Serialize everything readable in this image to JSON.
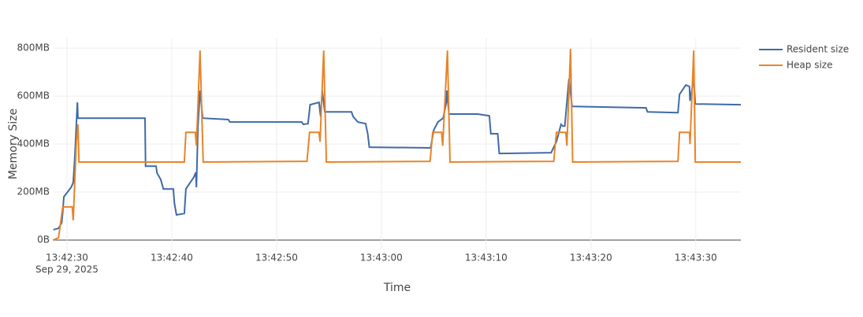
{
  "chart_data": {
    "type": "line",
    "x_title": "Time",
    "y_title": "Memory Size",
    "x_date_label": "Sep 29, 2025",
    "xlim": [
      "13:42:28.65",
      "13:43:34.3"
    ],
    "xticks": [
      "13:42:30",
      "13:42:40",
      "13:42:50",
      "13:43:00",
      "13:43:10",
      "13:43:20",
      "13:43:30"
    ],
    "ylim": [
      -42,
      843
    ],
    "yticks": [
      {
        "value": 0,
        "label": "0B"
      },
      {
        "value": 200,
        "label": "200MB"
      },
      {
        "value": 400,
        "label": "400MB"
      },
      {
        "value": 600,
        "label": "600MB"
      },
      {
        "value": 800,
        "label": "800MB"
      }
    ],
    "grid": true,
    "legend": "right",
    "series": [
      {
        "name": "Resident size",
        "color": "#3f6aa8",
        "x": [
          "13:42:28.7",
          "13:42:29.2",
          "13:42:29.5",
          "13:42:29.6",
          "13:42:29.7",
          "13:42:30.4",
          "13:42:30.6",
          "13:42:30.75",
          "13:42:31.0",
          "13:42:31.05",
          "13:42:37.45",
          "13:42:37.5",
          "13:42:38.5",
          "13:42:38.6",
          "13:42:38.95",
          "13:42:39.2",
          "13:42:40.15",
          "13:42:40.25",
          "13:42:40.45",
          "13:42:41.2",
          "13:42:41.35",
          "13:42:41.5",
          "13:42:42.1",
          "13:42:42.3",
          "13:42:42.35",
          "13:42:42.5",
          "13:42:42.7",
          "13:42:42.95",
          "13:42:45.4",
          "13:42:45.55",
          "13:42:52.4",
          "13:42:52.55",
          "13:42:53.0",
          "13:42:53.2",
          "13:42:54.05",
          "13:42:54.2",
          "13:42:54.35",
          "13:42:54.6",
          "13:42:57.15",
          "13:42:57.3",
          "13:42:57.75",
          "13:42:58.5",
          "13:42:58.7",
          "13:42:58.85",
          "13:43:04.7",
          "13:43:05.0",
          "13:43:05.4",
          "13:43:05.9",
          "13:43:06.2",
          "13:43:06.25",
          "13:43:06.45",
          "13:43:09.2",
          "13:43:10.3",
          "13:43:10.45",
          "13:43:11.1",
          "13:43:11.25",
          "13:43:16.2",
          "13:43:16.7",
          "13:43:17.15",
          "13:43:17.3",
          "13:43:17.5",
          "13:43:17.9",
          "13:43:18.2",
          "13:43:25.25",
          "13:43:25.4",
          "13:43:28.3",
          "13:43:28.45",
          "13:43:29.05",
          "13:43:29.4",
          "13:43:29.45",
          "13:43:29.8",
          "13:43:29.95",
          "13:43:34.3"
        ],
        "values": [
          43,
          49,
          72,
          115,
          180,
          220,
          240,
          344,
          574,
          508,
          508,
          308,
          308,
          279,
          252,
          213,
          213,
          154,
          105,
          111,
          213,
          223,
          262,
          282,
          220,
          475,
          623,
          508,
          502,
          492,
          492,
          482,
          485,
          564,
          574,
          515,
          623,
          534,
          534,
          515,
          492,
          485,
          443,
          387,
          384,
          459,
          492,
          508,
          574,
          623,
          525,
          525,
          518,
          443,
          443,
          361,
          364,
          410,
          482,
          475,
          475,
          672,
          557,
          551,
          534,
          531,
          607,
          646,
          640,
          580,
          672,
          567,
          564
        ]
      },
      {
        "name": "Heap size",
        "color": "#e8842a",
        "x": [
          "13:42:28.7",
          "13:42:29.2",
          "13:42:29.6",
          "13:42:30.5",
          "13:42:30.6",
          "13:42:30.9",
          "13:42:31.05",
          "13:42:31.15",
          "13:42:41.2",
          "13:42:41.35",
          "13:42:42.25",
          "13:42:42.35",
          "13:42:42.7",
          "13:42:43.0",
          "13:42:52.9",
          "13:42:53.15",
          "13:42:54.05",
          "13:42:54.15",
          "13:42:54.5",
          "13:42:54.75",
          "13:43:04.65",
          "13:43:04.9",
          "13:43:05.75",
          "13:43:05.85",
          "13:43:06.3",
          "13:43:06.55",
          "13:43:16.45",
          "13:43:16.7",
          "13:43:17.6",
          "13:43:17.7",
          "13:43:18.05",
          "13:43:18.25",
          "13:43:28.3",
          "13:43:28.45",
          "13:43:29.4",
          "13:43:29.45",
          "13:43:29.8",
          "13:43:29.95",
          "13:43:34.3"
        ],
        "values": [
          0,
          10,
          138,
          138,
          82,
          410,
          482,
          325,
          325,
          449,
          449,
          393,
          790,
          325,
          328,
          449,
          449,
          410,
          790,
          325,
          328,
          449,
          449,
          393,
          790,
          325,
          328,
          449,
          449,
          393,
          797,
          325,
          328,
          449,
          449,
          400,
          790,
          325,
          325
        ]
      }
    ]
  }
}
